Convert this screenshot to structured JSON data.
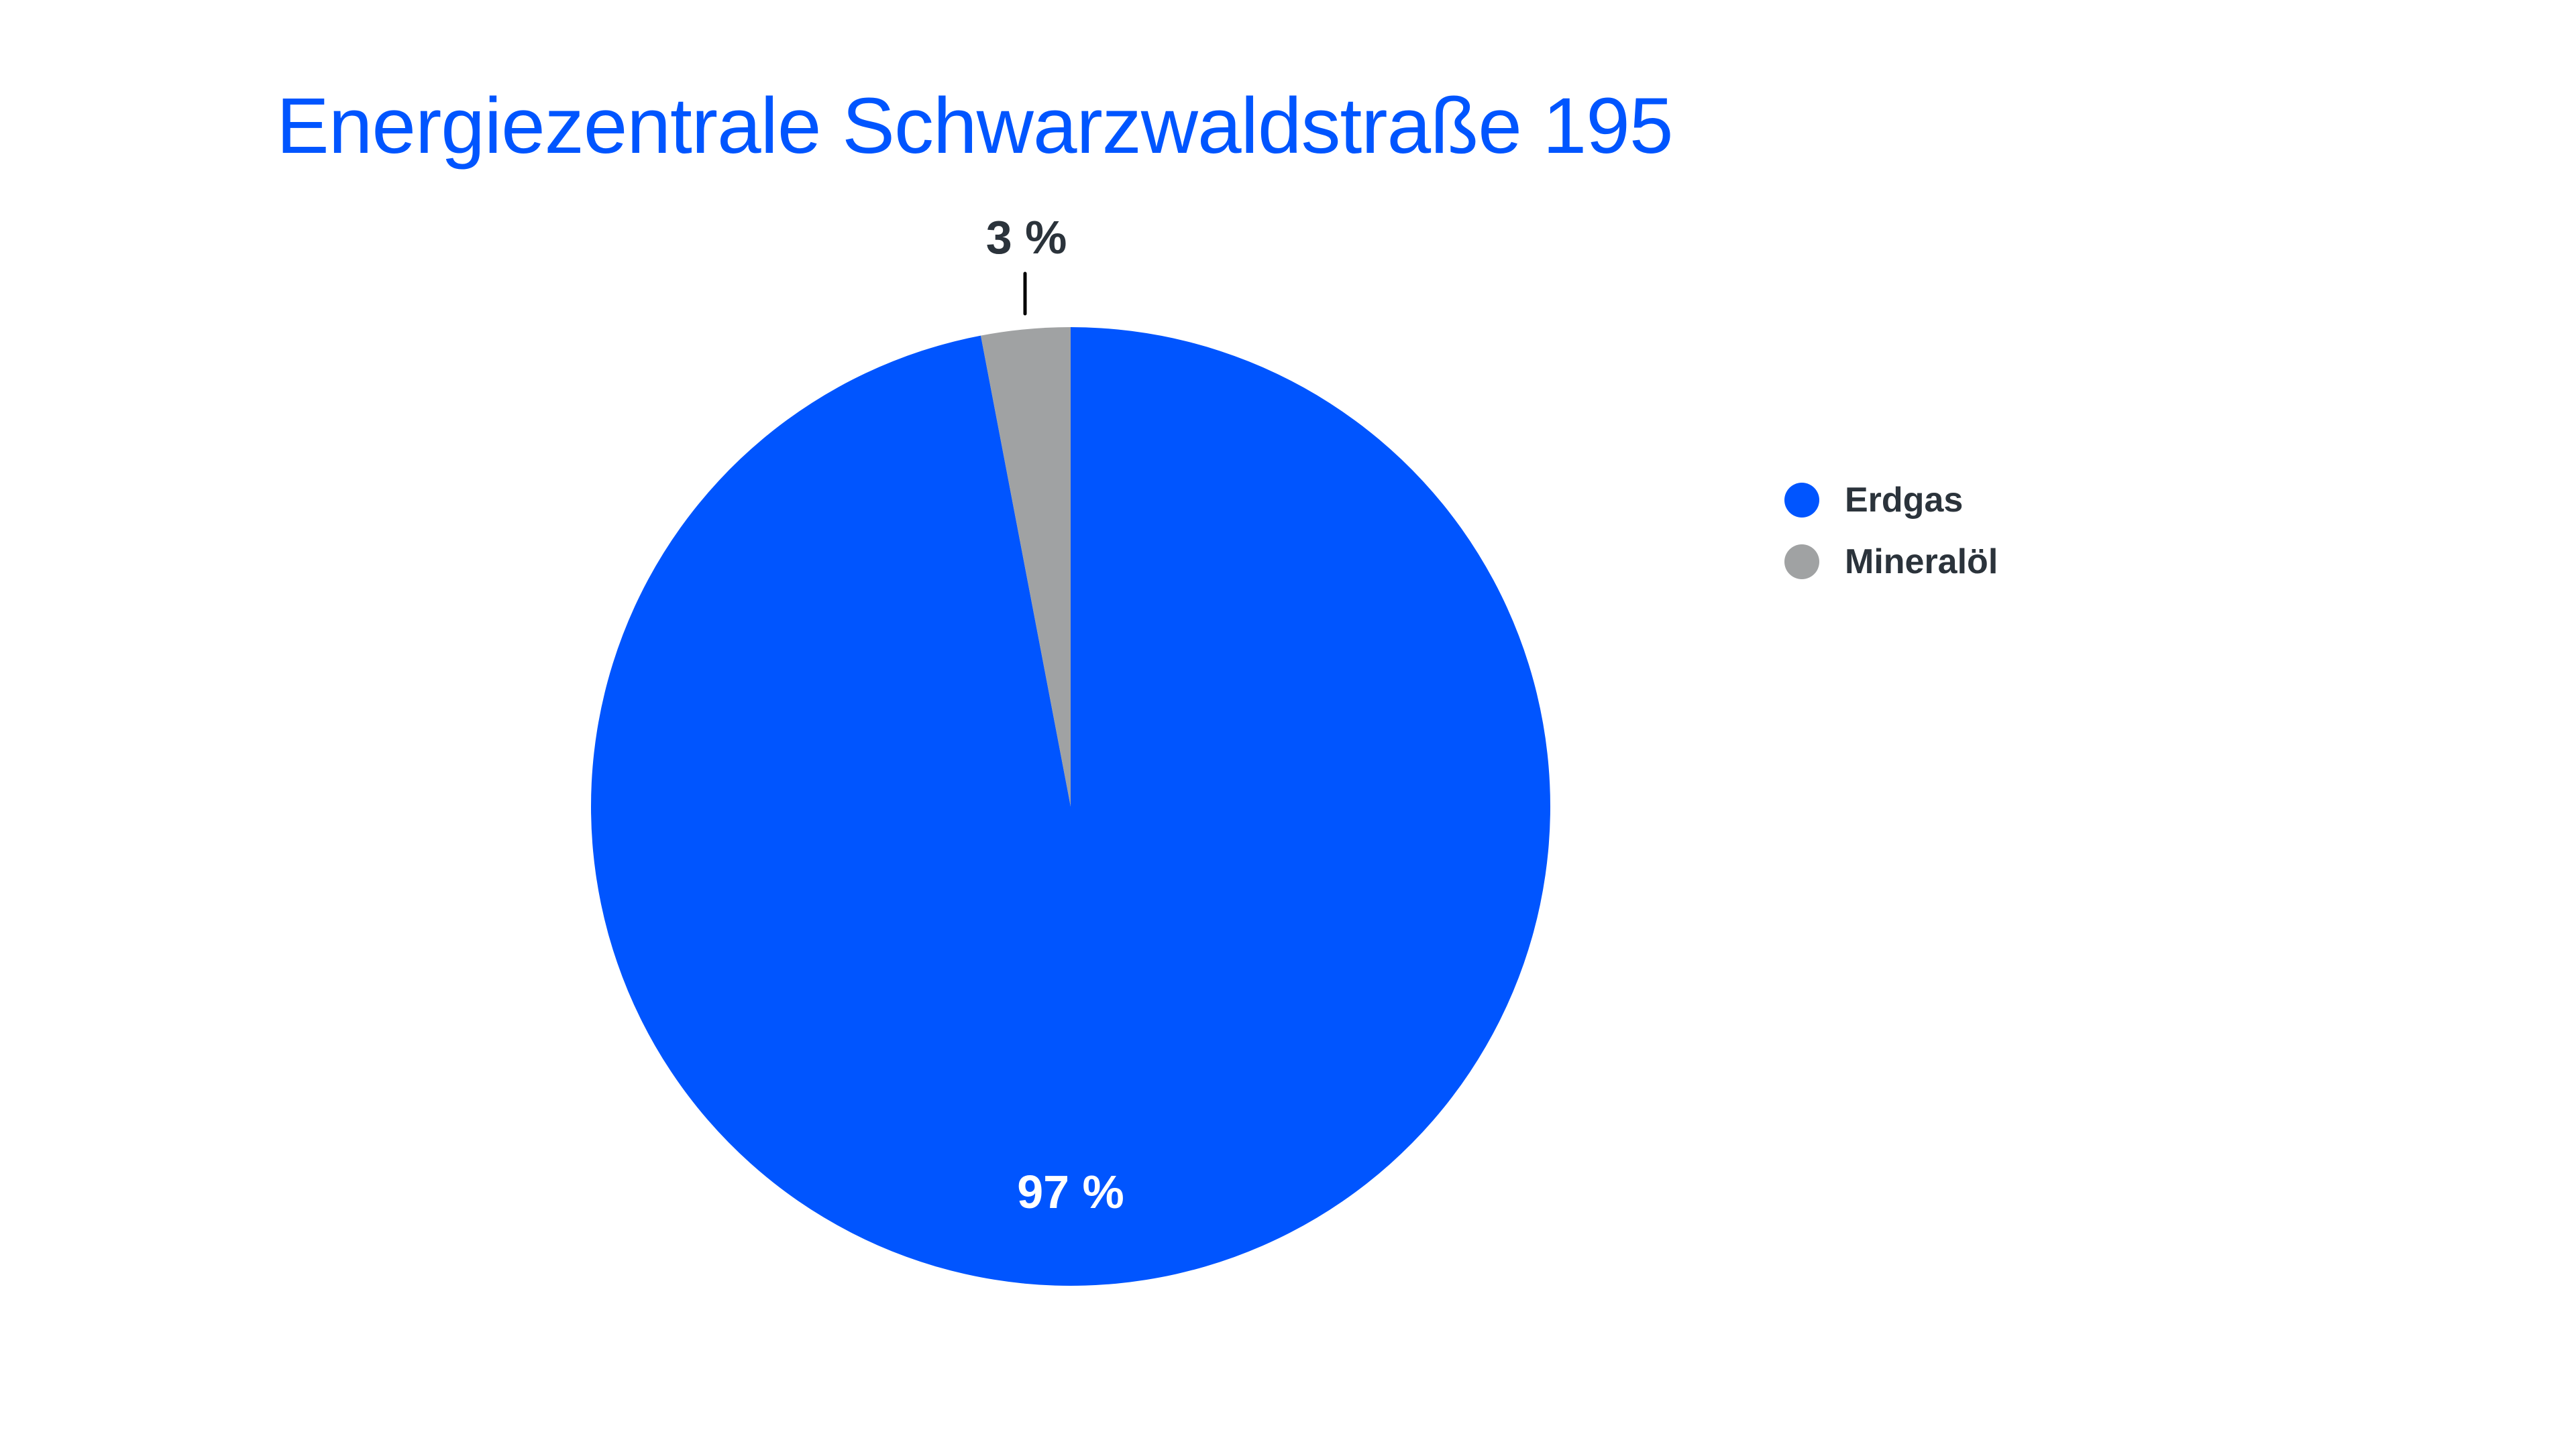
{
  "title": "Energiezentrale Schwarzwaldstraße 195",
  "colors": {
    "title": "#0055ff",
    "erdgas": "#0055ff",
    "mineraloel": "#a0a2a3",
    "text": "#2b333b"
  },
  "labels": {
    "erdgas_value": "97 %",
    "mineraloel_value": "3 %"
  },
  "legend": [
    {
      "label": "Erdgas",
      "color": "#0055ff"
    },
    {
      "label": "Mineralöl",
      "color": "#a0a2a3"
    }
  ],
  "chart_data": {
    "type": "pie",
    "title": "Energiezentrale Schwarzwaldstraße 195",
    "categories": [
      "Erdgas",
      "Mineralöl"
    ],
    "values": [
      97,
      3
    ],
    "unit": "%",
    "colors": [
      "#0055ff",
      "#a0a2a3"
    ],
    "legend_position": "right"
  }
}
